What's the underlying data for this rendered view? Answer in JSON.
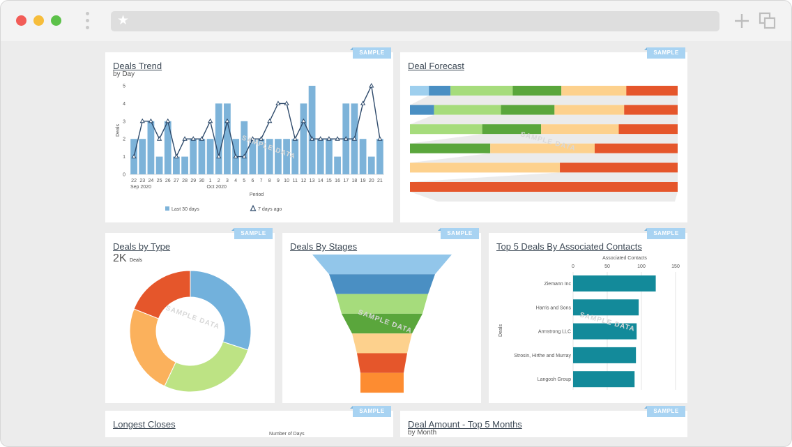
{
  "browser": {
    "bookmark_icon": "star-icon",
    "new_tab_icon": "plus-icon",
    "windows_icon": "duplicate-windows-icon"
  },
  "sample_label": "SAMPLE",
  "watermark": "SAMPLE DATA",
  "deals_trend": {
    "title": "Deals Trend",
    "subtitle": "by Day",
    "chart_data": {
      "type": "bar",
      "categories": [
        "22",
        "23",
        "24",
        "25",
        "26",
        "27",
        "28",
        "29",
        "30",
        "1",
        "2",
        "3",
        "4",
        "5",
        "6",
        "7",
        "8",
        "9",
        "10",
        "11",
        "12",
        "13",
        "14",
        "15",
        "16",
        "17",
        "18",
        "19",
        "20",
        "21"
      ],
      "month_labels": [
        "Sep 2020",
        "Oct 2020"
      ],
      "series": [
        {
          "name": "Last 30 days",
          "type": "bar",
          "values": [
            2,
            2,
            3,
            1,
            3,
            1,
            1,
            2,
            2,
            2,
            4,
            4,
            2,
            3,
            2,
            2,
            2,
            2,
            2,
            2,
            4,
            5,
            2,
            2,
            1,
            4,
            4,
            2,
            1,
            2
          ]
        },
        {
          "name": "7 days ago",
          "type": "line",
          "values": [
            1,
            3,
            3,
            2,
            3,
            1,
            2,
            2,
            2,
            3,
            1,
            3,
            1,
            1,
            2,
            2,
            3,
            4,
            4,
            2,
            3,
            2,
            2,
            2,
            2,
            2,
            2,
            4,
            5,
            2
          ]
        }
      ],
      "xlabel": "Period",
      "ylabel": "Deals",
      "ylim": [
        0,
        5
      ],
      "yticks": [
        "0",
        "1",
        "2",
        "3",
        "4",
        "5"
      ],
      "colors": {
        "bar": "#7db3d9",
        "line": "#2e4a6b"
      }
    }
  },
  "deal_forecast": {
    "title": "Deal Forecast",
    "chart_data": {
      "type": "funnel-bars",
      "rows": [
        [
          {
            "v": 7,
            "c": "#9ecfee"
          },
          {
            "v": 8,
            "c": "#4a8fc3"
          },
          {
            "v": 23,
            "c": "#a6dc7c"
          },
          {
            "v": 18,
            "c": "#5aa63c"
          },
          {
            "v": 24,
            "c": "#fdd18d"
          },
          {
            "v": 19,
            "c": "#e5562b"
          }
        ],
        [
          {
            "v": 9,
            "c": "#4a8fc3"
          },
          {
            "v": 25,
            "c": "#a6dc7c"
          },
          {
            "v": 20,
            "c": "#5aa63c"
          },
          {
            "v": 26,
            "c": "#fdd18d"
          },
          {
            "v": 20,
            "c": "#e5562b"
          }
        ],
        [
          {
            "v": 27,
            "c": "#a6dc7c"
          },
          {
            "v": 22,
            "c": "#5aa63c"
          },
          {
            "v": 29,
            "c": "#fdd18d"
          },
          {
            "v": 22,
            "c": "#e5562b"
          }
        ],
        [
          {
            "v": 30,
            "c": "#5aa63c"
          },
          {
            "v": 39,
            "c": "#fdd18d"
          },
          {
            "v": 31,
            "c": "#e5562b"
          }
        ],
        [
          {
            "v": 56,
            "c": "#fdd18d"
          },
          {
            "v": 44,
            "c": "#e5562b"
          }
        ],
        [
          {
            "v": 100,
            "c": "#e5562b"
          }
        ]
      ]
    }
  },
  "deals_by_type": {
    "title": "Deals by Type",
    "kpi_value": "2K",
    "kpi_unit": "Deals",
    "chart_data": {
      "type": "pie",
      "donut": true,
      "values": [
        30,
        27,
        24,
        19
      ],
      "colors": [
        "#72b1dc",
        "#bde384",
        "#fbb15c",
        "#e5562b"
      ]
    }
  },
  "deals_by_stages": {
    "title": "Deals By Stages",
    "chart_data": {
      "type": "funnel",
      "stages": [
        {
          "value": 100,
          "color": "#92c6ea"
        },
        {
          "value": 76,
          "color": "#4a8fc3"
        },
        {
          "value": 66,
          "color": "#a6dc7c"
        },
        {
          "value": 58,
          "color": "#5aa63c"
        },
        {
          "value": 43,
          "color": "#fdd18d"
        },
        {
          "value": 36,
          "color": "#e5562b"
        },
        {
          "value": 31,
          "color": "#fd8c31"
        }
      ]
    }
  },
  "top5_contacts": {
    "title": "Top 5 Deals By Associated Contacts",
    "chart_data": {
      "type": "bar",
      "orientation": "horizontal",
      "categories": [
        "Ziemann Inc",
        "Harris and Sons",
        "Armstrong LLC",
        "Strosin, Hirthe and Murray",
        "Langosh Group"
      ],
      "values": [
        121,
        96,
        93,
        92,
        90
      ],
      "xlabel": "Associated Contacts",
      "ylabel": "Deals",
      "xlim": [
        0,
        150
      ],
      "xticks": [
        "0",
        "50",
        "100",
        "150"
      ],
      "color": "#138a9a"
    }
  },
  "longest_closes": {
    "title": "Longest Closes",
    "axis_label": "Number of Days"
  },
  "deal_amount": {
    "title": "Deal Amount - Top 5 Months",
    "subtitle": "by Month"
  }
}
